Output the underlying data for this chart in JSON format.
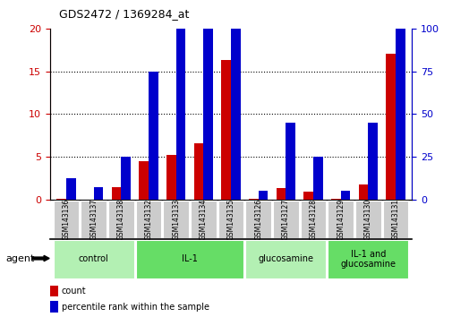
{
  "title": "GDS2472 / 1369284_at",
  "samples": [
    "GSM143136",
    "GSM143137",
    "GSM143138",
    "GSM143132",
    "GSM143133",
    "GSM143134",
    "GSM143135",
    "GSM143126",
    "GSM143127",
    "GSM143128",
    "GSM143129",
    "GSM143130",
    "GSM143131"
  ],
  "count_values": [
    0.15,
    0.05,
    1.5,
    4.5,
    5.2,
    6.6,
    16.3,
    0.1,
    1.4,
    0.9,
    0.1,
    1.8,
    17.1
  ],
  "percentile_values": [
    2.5,
    1.5,
    5.0,
    15.0,
    20.0,
    22.5,
    24.0,
    1.0,
    9.0,
    5.0,
    1.0,
    9.0,
    24.0
  ],
  "groups": [
    {
      "label": "control",
      "start": 0,
      "end": 3,
      "color": "#b3f0b3"
    },
    {
      "label": "IL-1",
      "start": 3,
      "end": 7,
      "color": "#66dd66"
    },
    {
      "label": "glucosamine",
      "start": 7,
      "end": 10,
      "color": "#b3f0b3"
    },
    {
      "label": "IL-1 and\nglucosamine",
      "start": 10,
      "end": 13,
      "color": "#66dd66"
    }
  ],
  "ylim_left": [
    0,
    20
  ],
  "ylim_right": [
    0,
    100
  ],
  "yticks_left": [
    0,
    5,
    10,
    15,
    20
  ],
  "yticks_right": [
    0,
    25,
    50,
    75,
    100
  ],
  "count_color": "#cc0000",
  "percentile_color": "#0000cc",
  "bar_width": 0.35,
  "bg_color": "#ffffff",
  "tick_bg_color": "#cccccc",
  "agent_label": "agent",
  "legend_count": "count",
  "legend_percentile": "percentile rank within the sample"
}
